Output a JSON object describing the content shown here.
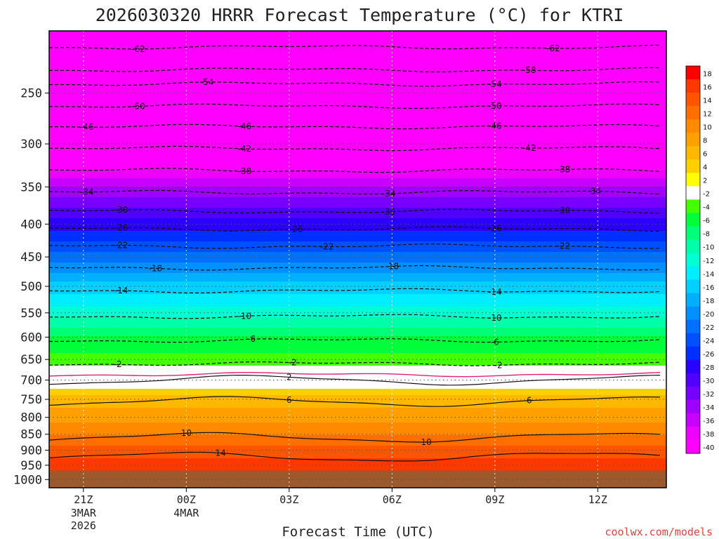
{
  "chart_data": {
    "type": "heatmap",
    "title": "2026030320 HRRR Forecast Temperature (°C) for KTRI",
    "xlabel": "Forecast Time (UTC)",
    "ylabel": "",
    "credit": "coolwx.com/models",
    "x_ticks": [
      {
        "label": "21Z",
        "sub": [
          "3MAR",
          "2026"
        ],
        "hour": 0
      },
      {
        "label": "00Z",
        "sub": [
          "4MAR"
        ],
        "hour": 3
      },
      {
        "label": "03Z",
        "sub": [],
        "hour": 6
      },
      {
        "label": "06Z",
        "sub": [],
        "hour": 9
      },
      {
        "label": "09Z",
        "sub": [],
        "hour": 12
      },
      {
        "label": "12Z",
        "sub": [],
        "hour": 15
      }
    ],
    "x_range_hours": [
      -1,
      17
    ],
    "y_ticks": [
      250,
      300,
      350,
      400,
      450,
      500,
      550,
      600,
      650,
      700,
      750,
      800,
      850,
      900,
      950,
      1000
    ],
    "y_range_hpa": [
      200,
      1030
    ],
    "y_scale": "log",
    "surface_pressure_hpa": 968,
    "grid": true,
    "colorbar": {
      "labels": [
        18,
        16,
        14,
        12,
        10,
        8,
        6,
        4,
        2,
        -2,
        -4,
        -6,
        -8,
        -10,
        -12,
        -14,
        -16,
        -18,
        -20,
        -22,
        -24,
        -26,
        -28,
        -30,
        -32,
        -34,
        -36,
        -38,
        -40
      ],
      "colors": [
        "#ff0000",
        "#ff3800",
        "#ff5500",
        "#ff6f00",
        "#ff8a00",
        "#ffa000",
        "#ffb800",
        "#ffd000",
        "#ffff00",
        "#ffffff",
        "#44ff00",
        "#00ff3a",
        "#00ff78",
        "#00ffa8",
        "#00ffd2",
        "#00eeff",
        "#00d0ff",
        "#00b0ff",
        "#0090ff",
        "#0070ff",
        "#0050ff",
        "#0030ff",
        "#2a00ff",
        "#5000ff",
        "#7800ff",
        "#a000ff",
        "#c800ff",
        "#ee00ff",
        "#ff00ff"
      ],
      "legend_position": "right"
    },
    "profile_t_vs_p": [
      [
        250,
        -54
      ],
      [
        300,
        -44
      ],
      [
        350,
        -34
      ],
      [
        400,
        -27
      ],
      [
        450,
        -21
      ],
      [
        500,
        -15
      ],
      [
        550,
        -11
      ],
      [
        600,
        -6
      ],
      [
        650,
        -3
      ],
      [
        700,
        0
      ],
      [
        750,
        5
      ],
      [
        800,
        7
      ],
      [
        850,
        10
      ],
      [
        900,
        13
      ],
      [
        950,
        15
      ],
      [
        968,
        16
      ]
    ],
    "contours": [
      {
        "value": -62,
        "p": 212,
        "label_at": [
          [
            1.6,
            "-62"
          ],
          [
            13.7,
            "-62"
          ]
        ]
      },
      {
        "value": -58,
        "p": 230,
        "label_at": [
          [
            13.0,
            "-58"
          ]
        ]
      },
      {
        "value": -54,
        "p": 242,
        "label_at": [
          [
            3.6,
            "-54"
          ],
          [
            12.0,
            "-54"
          ]
        ]
      },
      {
        "value": -50,
        "p": 262,
        "label_at": [
          [
            1.6,
            "-50"
          ],
          [
            12.0,
            "-50"
          ]
        ]
      },
      {
        "value": -46,
        "p": 282,
        "label_at": [
          [
            0.1,
            "-46"
          ],
          [
            4.7,
            "-46"
          ],
          [
            12.0,
            "-46"
          ]
        ]
      },
      {
        "value": -42,
        "p": 305,
        "label_at": [
          [
            4.7,
            "-42"
          ],
          [
            13.0,
            "-42"
          ]
        ]
      },
      {
        "value": -38,
        "p": 330,
        "label_at": [
          [
            4.7,
            "-38"
          ],
          [
            14.0,
            "-38"
          ]
        ]
      },
      {
        "value": -34,
        "p": 357,
        "label_at": [
          [
            0.1,
            "-34"
          ],
          [
            8.9,
            "-34"
          ],
          [
            14.9,
            "-34"
          ]
        ]
      },
      {
        "value": -30,
        "p": 382,
        "label_at": [
          [
            1.1,
            "-30"
          ],
          [
            8.9,
            "-30"
          ],
          [
            14.0,
            "-30"
          ]
        ]
      },
      {
        "value": -26,
        "p": 407,
        "label_at": [
          [
            1.1,
            "-26"
          ],
          [
            6.2,
            "-26"
          ],
          [
            12.0,
            "-26"
          ]
        ]
      },
      {
        "value": -22,
        "p": 433,
        "label_at": [
          [
            1.1,
            "-22"
          ],
          [
            7.1,
            "-22"
          ],
          [
            14.0,
            "-22"
          ]
        ]
      },
      {
        "value": -18,
        "p": 468,
        "label_at": [
          [
            2.1,
            "-18"
          ],
          [
            9.0,
            "-18"
          ]
        ]
      },
      {
        "value": -14,
        "p": 508,
        "label_at": [
          [
            1.1,
            "-14"
          ],
          [
            12.0,
            "-14"
          ]
        ]
      },
      {
        "value": -10,
        "p": 557,
        "label_at": [
          [
            4.7,
            "-10"
          ],
          [
            12.0,
            "-10"
          ]
        ]
      },
      {
        "value": -6,
        "p": 607,
        "label_at": [
          [
            4.9,
            "-6"
          ],
          [
            12.0,
            "-6"
          ]
        ]
      },
      {
        "value": -2,
        "p": 660,
        "label_at": [
          [
            1.0,
            "-2"
          ],
          [
            6.1,
            "-2"
          ],
          [
            12.1,
            "-2"
          ]
        ]
      },
      {
        "value": 0,
        "p": 686,
        "label_at": []
      },
      {
        "value": 2,
        "p": 700,
        "label_at": [
          [
            6.0,
            "2"
          ]
        ]
      },
      {
        "value": 6,
        "p": 756,
        "label_at": [
          [
            6.0,
            "6"
          ],
          [
            13.0,
            "6"
          ]
        ]
      },
      {
        "value": 10,
        "p": 860,
        "label_at": [
          [
            3.0,
            "10"
          ],
          [
            10.0,
            "10"
          ]
        ]
      },
      {
        "value": 14,
        "p": 922,
        "label_at": [
          [
            4.0,
            "14"
          ]
        ]
      }
    ]
  }
}
